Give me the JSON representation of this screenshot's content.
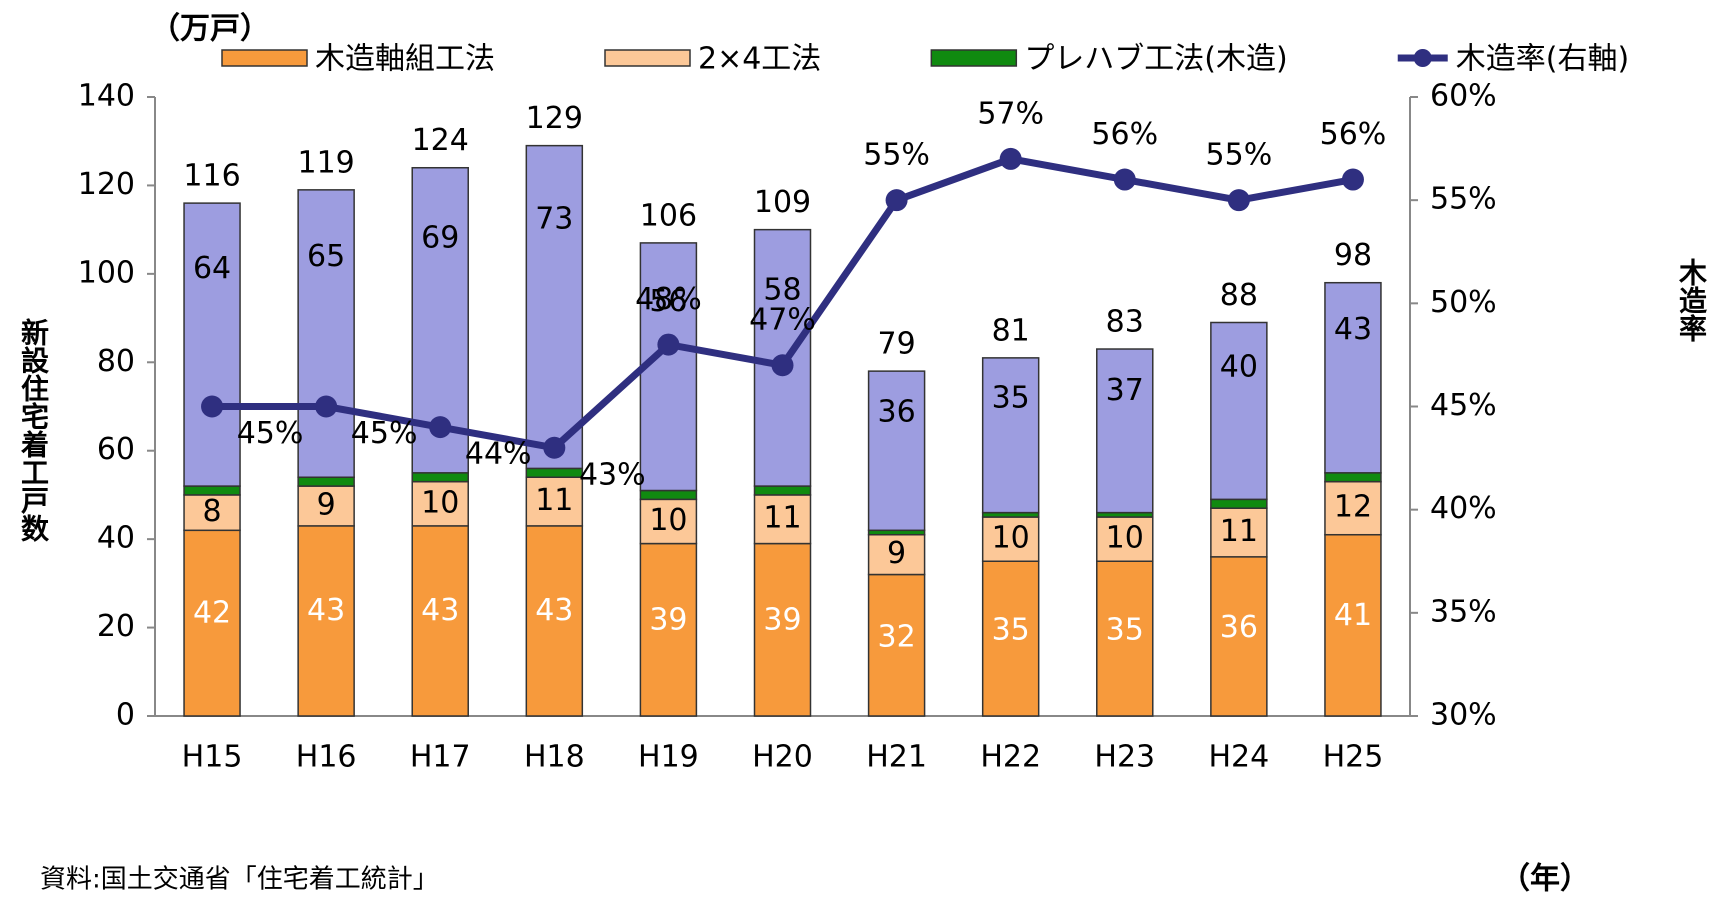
{
  "chart_data": {
    "type": "bar",
    "y_unit": "（万戸）",
    "x_unit": "（年）",
    "y_label": "新設住宅着工戸数",
    "y2_label": "木造率",
    "source": "資料:国土交通省「住宅着工統計」",
    "categories": [
      "H15",
      "H16",
      "H17",
      "H18",
      "H19",
      "H20",
      "H21",
      "H22",
      "H23",
      "H24",
      "H25"
    ],
    "series": [
      {
        "name": "木造軸組工法",
        "color": "#f79a3c",
        "values": [
          42,
          43,
          43,
          43,
          39,
          39,
          32,
          35,
          35,
          36,
          41
        ]
      },
      {
        "name": "2×4工法",
        "color": "#fcc898",
        "values": [
          8,
          9,
          10,
          11,
          10,
          11,
          9,
          10,
          10,
          11,
          12
        ]
      },
      {
        "name": "プレハブ工法(木造)",
        "color": "#108a10",
        "values": [
          2,
          2,
          2,
          2,
          2,
          2,
          1,
          1,
          1,
          2,
          2
        ]
      },
      {
        "color": "#9d9de0",
        "values": [
          64,
          65,
          69,
          73,
          56,
          58,
          36,
          35,
          37,
          40,
          43
        ]
      },
      {
        "name": "木造率(右軸)",
        "type": "line",
        "axis": "y2",
        "color": "#2f2f80",
        "values": [
          45,
          45,
          44,
          43,
          48,
          47,
          55,
          57,
          56,
          55,
          56
        ],
        "value_labels": [
          "45%",
          "45%",
          "44%",
          "43%",
          "48%",
          "47%",
          "55%",
          "57%",
          "56%",
          "55%",
          "56%"
        ]
      }
    ],
    "totals": [
      116,
      119,
      124,
      129,
      106,
      109,
      79,
      81,
      83,
      88,
      98
    ],
    "ylim": [
      0,
      140
    ],
    "yticks": [
      0,
      20,
      40,
      60,
      80,
      100,
      120,
      140
    ],
    "y2lim": [
      30,
      60
    ],
    "y2ticks": [
      {
        "value": 30,
        "label": "30%"
      },
      {
        "value": 35,
        "label": "35%"
      },
      {
        "value": 40,
        "label": "40%"
      },
      {
        "value": 45,
        "label": "45%"
      },
      {
        "value": 50,
        "label": "50%"
      },
      {
        "value": 55,
        "label": "55%"
      },
      {
        "value": 60,
        "label": "60%"
      }
    ]
  }
}
